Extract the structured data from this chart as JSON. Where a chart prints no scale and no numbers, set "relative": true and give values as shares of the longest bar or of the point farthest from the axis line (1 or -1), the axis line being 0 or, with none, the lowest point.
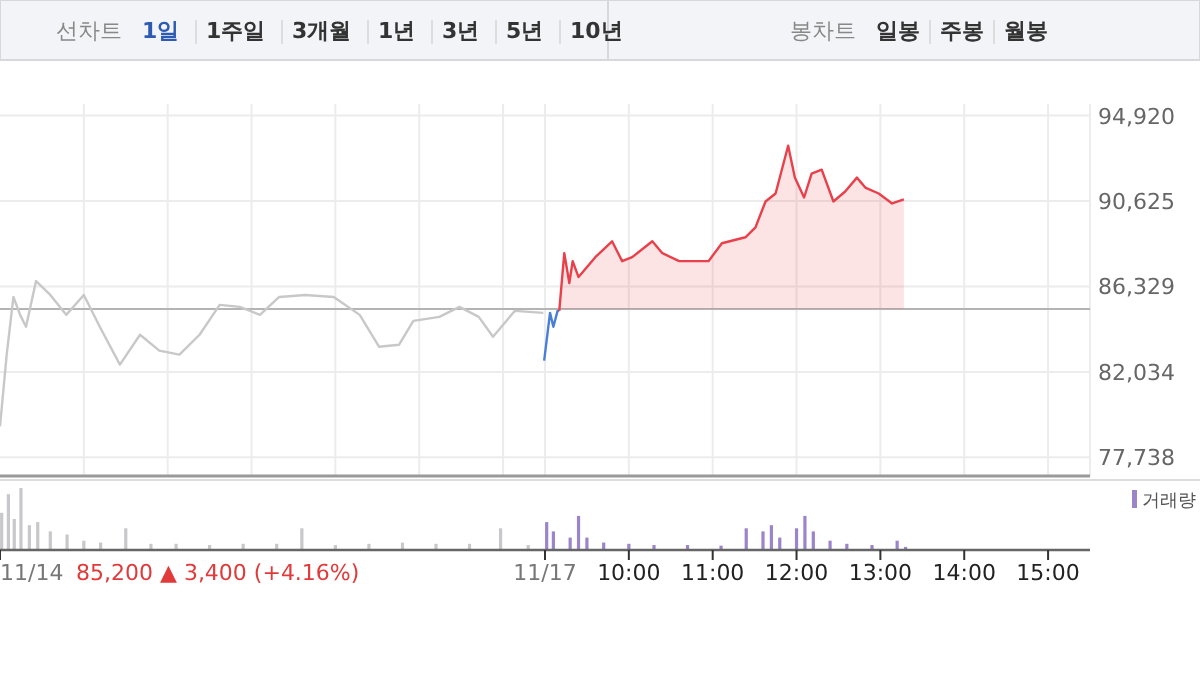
{
  "chart_data": [
    {
      "type": "line",
      "annotations": [
        "선차트",
        "1일",
        "1주일",
        "3개월",
        "1년",
        "3년",
        "5년",
        "10년",
        "봉차트",
        "일봉",
        "주봉",
        "월봉"
      ],
      "xlim": [
        2.5,
        15.5
      ],
      "xticks": [
        {
          "value": 3.5,
          "label": null
        },
        {
          "value": 4.5,
          "label": null
        },
        {
          "value": 5.5,
          "label": null
        },
        {
          "value": 6.5,
          "label": null
        },
        {
          "value": 7.5,
          "label": null
        },
        {
          "value": 8.5,
          "label": null
        },
        {
          "value": 9,
          "label": null
        },
        {
          "value": 10,
          "label": null
        },
        {
          "value": 11,
          "label": null
        },
        {
          "value": 12,
          "label": null
        },
        {
          "value": 13,
          "label": null
        },
        {
          "value": 14,
          "label": null
        },
        {
          "value": 15,
          "label": null
        }
      ],
      "ylim": [
        76800,
        95500
      ],
      "yticks": [
        {
          "value": 77738,
          "label": "77,738"
        },
        {
          "value": 82034,
          "label": "82,034"
        },
        {
          "value": 86329,
          "label": "86,329"
        },
        {
          "value": 90625,
          "label": "90,625"
        },
        {
          "value": 94920,
          "label": "94,920"
        }
      ],
      "tick_labels": "y",
      "grid": true,
      "ref_lines": [
        {
          "axis": "y",
          "value": 85200,
          "color": "#b4b4b4"
        }
      ],
      "series": [
        {
          "type": "line",
          "color": "#c8c8c8",
          "x": [
            2.5,
            2.58,
            2.66,
            2.74,
            2.81,
            2.93,
            3.1,
            3.29,
            3.5,
            3.69,
            3.93,
            4.17,
            4.4,
            4.64,
            4.88,
            5.12,
            5.36,
            5.6,
            5.83,
            6.14,
            6.48,
            6.79,
            7.02,
            7.26,
            7.43,
            7.74,
            7.98,
            8.21,
            8.38,
            8.64,
            8.98
          ],
          "values": [
            79300,
            82900,
            85800,
            84900,
            84300,
            86600,
            85900,
            84900,
            85900,
            84300,
            82400,
            83900,
            83100,
            82900,
            83900,
            85400,
            85300,
            84900,
            85800,
            85900,
            85800,
            84900,
            83300,
            83400,
            84600,
            84800,
            85300,
            84800,
            83800,
            85100,
            85000
          ]
        },
        {
          "type": "line",
          "color": "#4a7fd8",
          "x": [
            8.99,
            9.06,
            9.1,
            9.15,
            9.17
          ],
          "values": [
            82600,
            85000,
            84300,
            85100,
            85100
          ]
        },
        {
          "type": "area",
          "color": "#e8414b",
          "x": [
            9.17,
            9.23,
            9.29,
            9.33,
            9.4,
            9.6,
            9.8,
            9.92,
            10.04,
            10.28,
            10.4,
            10.6,
            10.95,
            11.11,
            11.39,
            11.51,
            11.63,
            11.75,
            11.9,
            11.98,
            12.09,
            12.18,
            12.3,
            12.44,
            12.58,
            12.72,
            12.82,
            12.98,
            13.14,
            13.28
          ],
          "values": [
            85100,
            88000,
            86500,
            87600,
            86800,
            87800,
            88600,
            87600,
            87800,
            88600,
            88000,
            87600,
            87600,
            88500,
            88800,
            89300,
            90600,
            91000,
            93400,
            91800,
            90800,
            92000,
            92200,
            90600,
            91100,
            91800,
            91300,
            91000,
            90500,
            90700
          ]
        }
      ]
    },
    {
      "type": "bar",
      "relative": true,
      "annotations": [
        "85,200 ▲ 3,400 (+4.16%)"
      ],
      "legend": "top right",
      "tick_labels": "x",
      "xlim": [
        2.5,
        15.5
      ],
      "xticks": [
        {
          "value": 2.5,
          "label": "11/14"
        },
        {
          "value": 9,
          "label": "11/17"
        },
        {
          "value": 10,
          "label": "10:00"
        },
        {
          "value": 11,
          "label": "11:00"
        },
        {
          "value": 12,
          "label": "12:00"
        },
        {
          "value": 13,
          "label": "13:00"
        },
        {
          "value": 14,
          "label": "14:00"
        },
        {
          "value": 15,
          "label": "15:00"
        }
      ],
      "series": [
        {
          "color": "#c8c8cc",
          "x": [
            2.52,
            2.6,
            2.67,
            2.75,
            2.85,
            2.95,
            3.1,
            3.3,
            3.5,
            3.7,
            4.0,
            4.3,
            4.6,
            5.0,
            5.4,
            5.8,
            6.1,
            6.5,
            6.9,
            7.3,
            7.7,
            8.1,
            8.47,
            8.8
          ],
          "values": [
            0.6,
            0.9,
            0.5,
            1.0,
            0.4,
            0.45,
            0.3,
            0.25,
            0.15,
            0.12,
            0.35,
            0.1,
            0.1,
            0.08,
            0.1,
            0.1,
            0.35,
            0.08,
            0.1,
            0.12,
            0.1,
            0.1,
            0.35,
            0.08
          ]
        },
        {
          "name": "거래량",
          "color": "#9b84c9",
          "x": [
            9.02,
            9.1,
            9.3,
            9.4,
            9.5,
            9.7,
            10.0,
            10.3,
            10.7,
            11.1,
            11.4,
            11.6,
            11.7,
            11.8,
            12.0,
            12.1,
            12.2,
            12.4,
            12.6,
            12.9,
            13.2,
            13.3
          ],
          "values": [
            0.45,
            0.3,
            0.2,
            0.55,
            0.2,
            0.12,
            0.1,
            0.08,
            0.08,
            0.07,
            0.35,
            0.3,
            0.4,
            0.2,
            0.35,
            0.55,
            0.3,
            0.15,
            0.1,
            0.08,
            0.15,
            0.05
          ]
        }
      ]
    }
  ]
}
